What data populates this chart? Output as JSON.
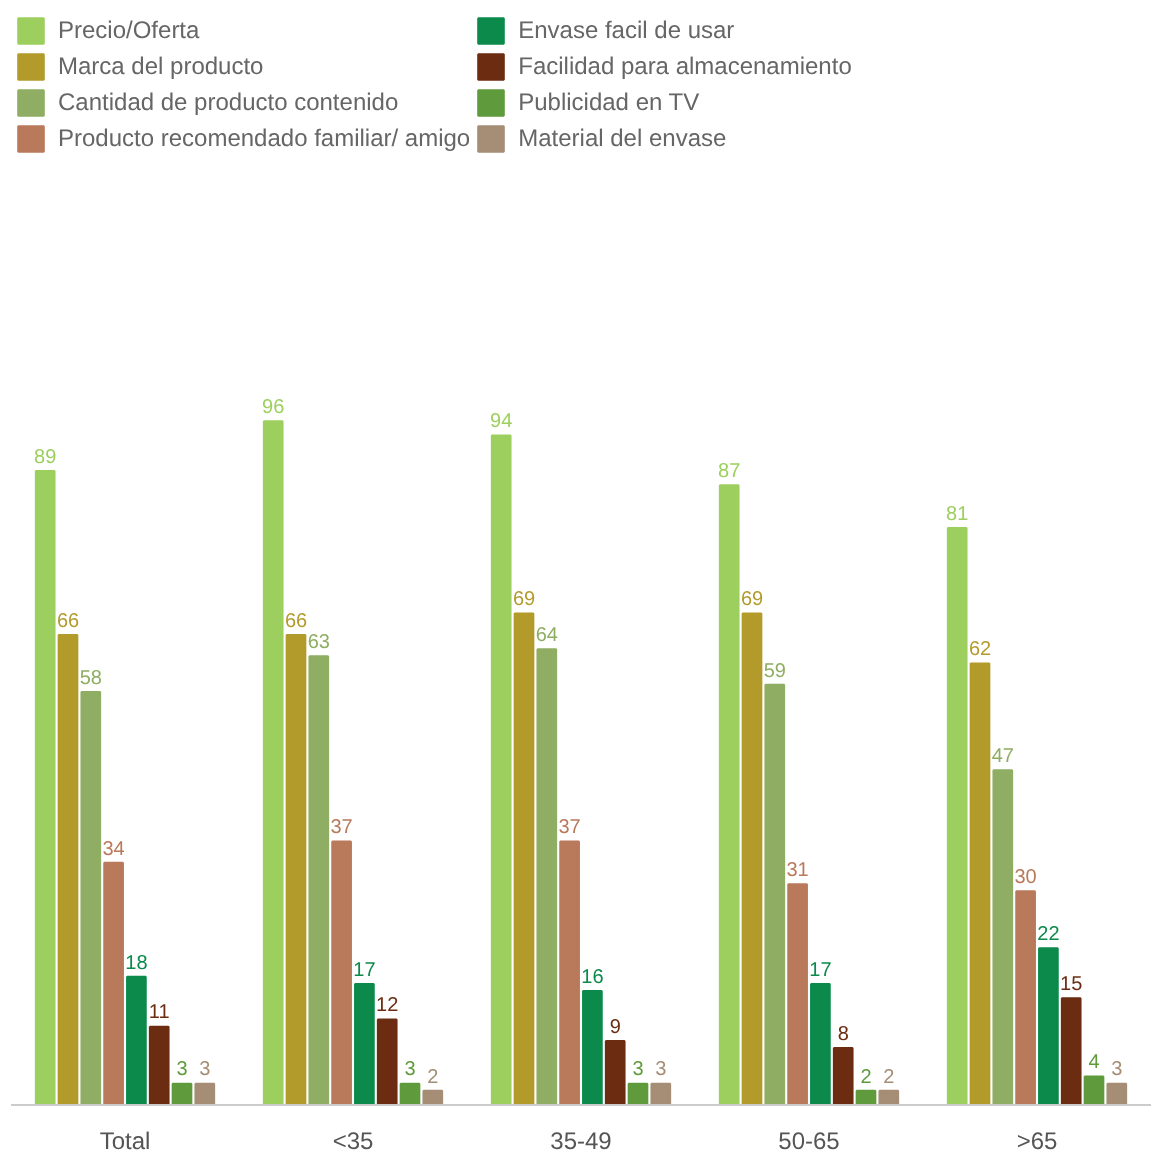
{
  "chart_data": {
    "type": "bar",
    "categories": [
      "Total",
      "<35",
      "35-49",
      "50-65",
      ">65"
    ],
    "series": [
      {
        "name": "Precio/Oferta",
        "color": "#9dcf5f",
        "values": [
          89,
          96,
          94,
          87,
          81
        ]
      },
      {
        "name": "Marca del producto",
        "color": "#b39b2b",
        "values": [
          66,
          66,
          69,
          69,
          62
        ]
      },
      {
        "name": "Cantidad de producto contenido",
        "color": "#8fae63",
        "values": [
          58,
          63,
          64,
          59,
          47
        ]
      },
      {
        "name": "Producto recomendado familiar/ amigo",
        "color": "#b9795b",
        "values": [
          34,
          37,
          37,
          31,
          30
        ]
      },
      {
        "name": "Envase facil de usar",
        "color": "#0b8a4b",
        "values": [
          18,
          17,
          16,
          17,
          22
        ]
      },
      {
        "name": "Facilidad para almacenamiento",
        "color": "#6b2c12",
        "values": [
          11,
          12,
          9,
          8,
          15
        ]
      },
      {
        "name": "Publicidad en TV",
        "color": "#5f9b3c",
        "values": [
          3,
          3,
          3,
          2,
          4
        ]
      },
      {
        "name": "Material del envase",
        "color": "#a58d76",
        "values": [
          3,
          2,
          3,
          2,
          3
        ]
      }
    ],
    "data_labels": true,
    "legend": "top",
    "grid": false
  }
}
